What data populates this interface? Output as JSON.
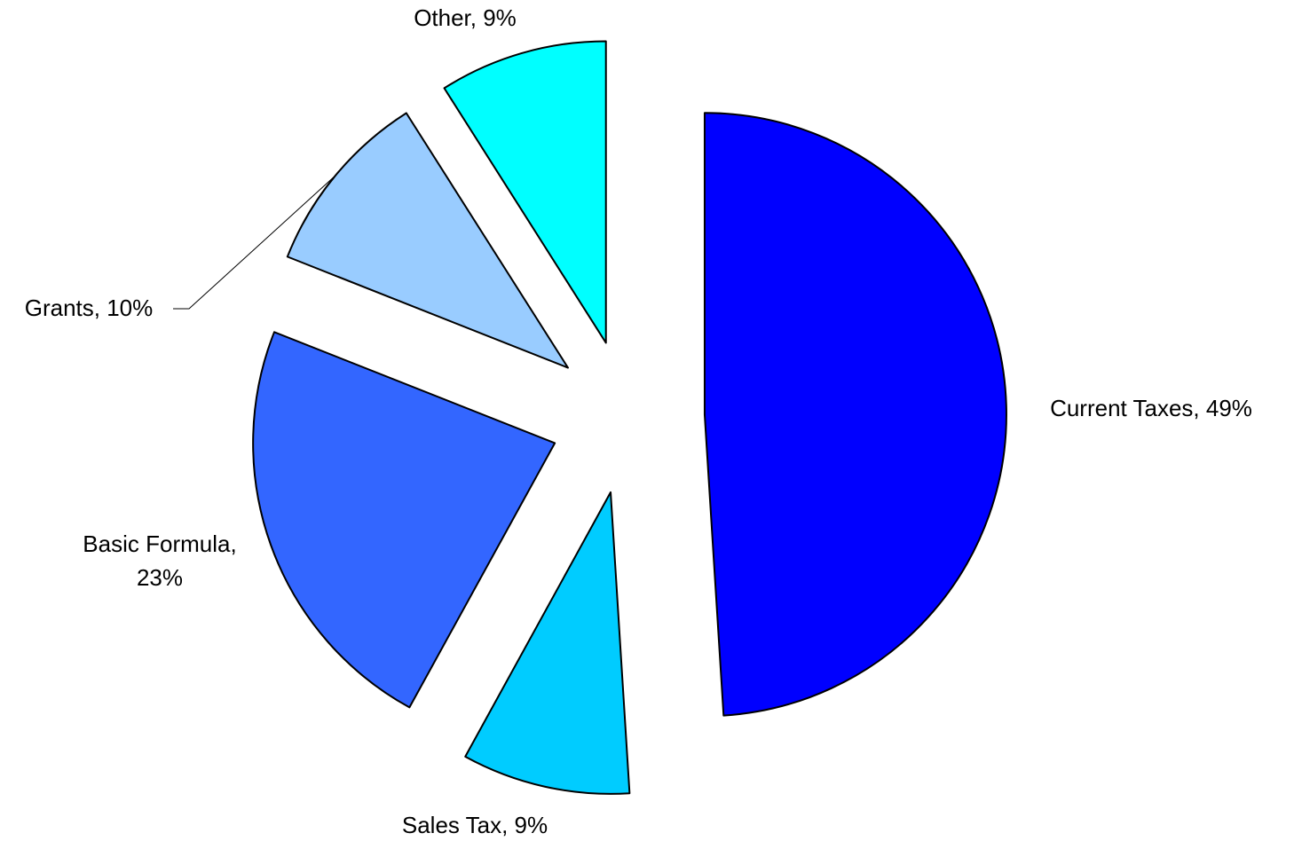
{
  "chart_data": {
    "type": "pie",
    "categories": [
      "Current Taxes",
      "Sales Tax",
      "Basic Formula",
      "Grants",
      "Other"
    ],
    "values": [
      49,
      9,
      23,
      10,
      9
    ],
    "value_labels": [
      "Current Taxes, 49%",
      "Sales Tax, 9%",
      "Basic Formula, 23%",
      "Grants, 10%",
      "Other, 9%"
    ],
    "colors": [
      "#0000FF",
      "#00CCFF",
      "#3366FF",
      "#99CCFF",
      "#00FFFF"
    ]
  }
}
